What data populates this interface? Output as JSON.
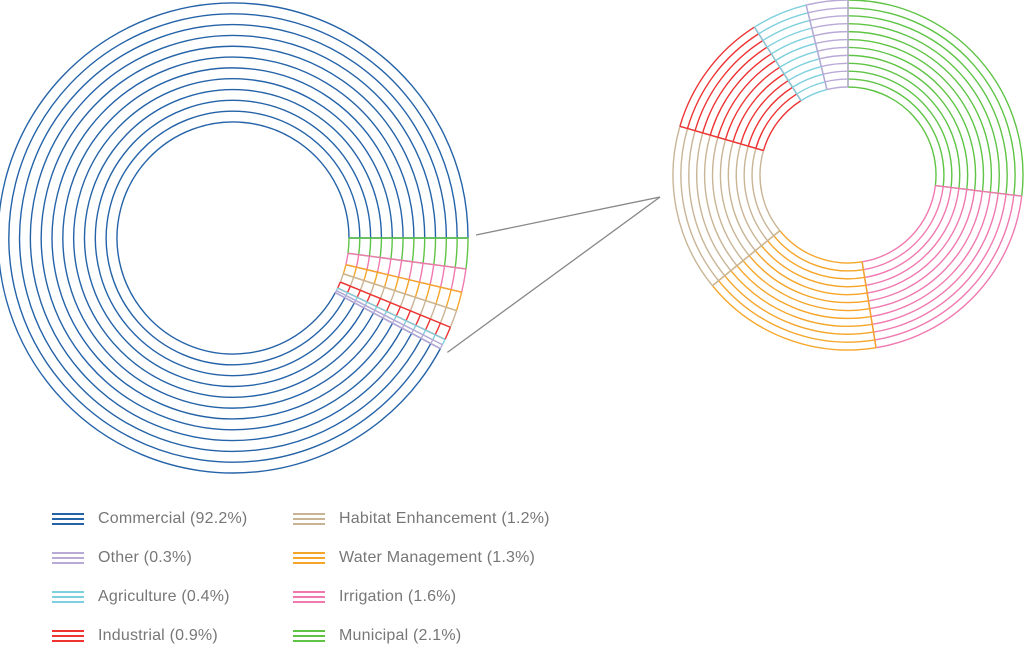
{
  "chart_data": {
    "type": "pie",
    "subtype": "pie-of-pie donut",
    "title": "",
    "series": [
      {
        "name": "Commercial",
        "label": "Commercial (92.2%)",
        "value": 92.2,
        "color": "#2563a8"
      },
      {
        "name": "Other",
        "label": "Other (0.3%)",
        "value": 0.3,
        "color": "#b9a9d6"
      },
      {
        "name": "Agriculture",
        "label": "Agriculture (0.4%)",
        "value": 0.4,
        "color": "#7fd0de"
      },
      {
        "name": "Industrial",
        "label": "Industrial (0.9%)",
        "value": 0.9,
        "color": "#ee3333"
      },
      {
        "name": "Habitat Enhancement",
        "label": "Habitat Enhancement (1.2%)",
        "value": 1.2,
        "color": "#c9b596"
      },
      {
        "name": "Water Management",
        "label": "Water Management (1.3%)",
        "value": 1.3,
        "color": "#f5a62a"
      },
      {
        "name": "Irrigation",
        "label": "Irrigation (1.6%)",
        "value": 1.6,
        "color": "#f07ab0"
      },
      {
        "name": "Municipal",
        "label": "Municipal (2.1%)",
        "value": 2.1,
        "color": "#5fc446"
      }
    ],
    "breakout_order": [
      "Municipal",
      "Irrigation",
      "Water Management",
      "Habitat Enhancement",
      "Industrial",
      "Agriculture",
      "Other"
    ],
    "legend_placement": "bottom-left"
  }
}
